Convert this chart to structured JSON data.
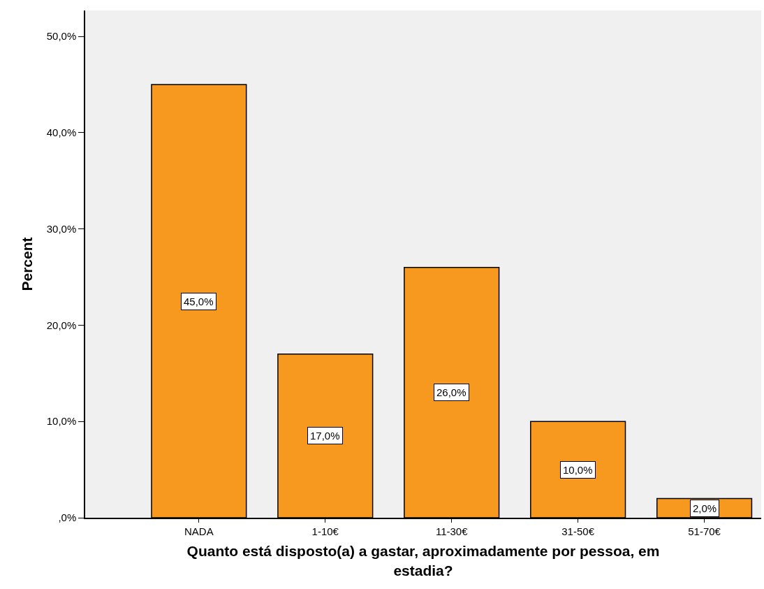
{
  "chart_data": {
    "type": "bar",
    "xlabel": "Quanto está disposto(a) a gastar, aproximadamente por pessoa, em estadia?",
    "ylabel": "Percent",
    "categories": [
      "NADA",
      "1-10€",
      "11-30€",
      "31-50€",
      "51-70€"
    ],
    "values": [
      45,
      17,
      26,
      10,
      2
    ],
    "value_labels": [
      "45,0%",
      "17,0%",
      "26,0%",
      "10,0%",
      "2,0%"
    ],
    "color": "#f7991f",
    "ylim": [
      0,
      52.7
    ],
    "yticks": [
      {
        "value": 0,
        "label": ",0%"
      },
      {
        "value": 10,
        "label": "10,0%"
      },
      {
        "value": 20,
        "label": "20,0%"
      },
      {
        "value": 30,
        "label": "30,0%"
      },
      {
        "value": 40,
        "label": "40,0%"
      },
      {
        "value": 50,
        "label": "50,0%"
      }
    ],
    "grid": false
  }
}
